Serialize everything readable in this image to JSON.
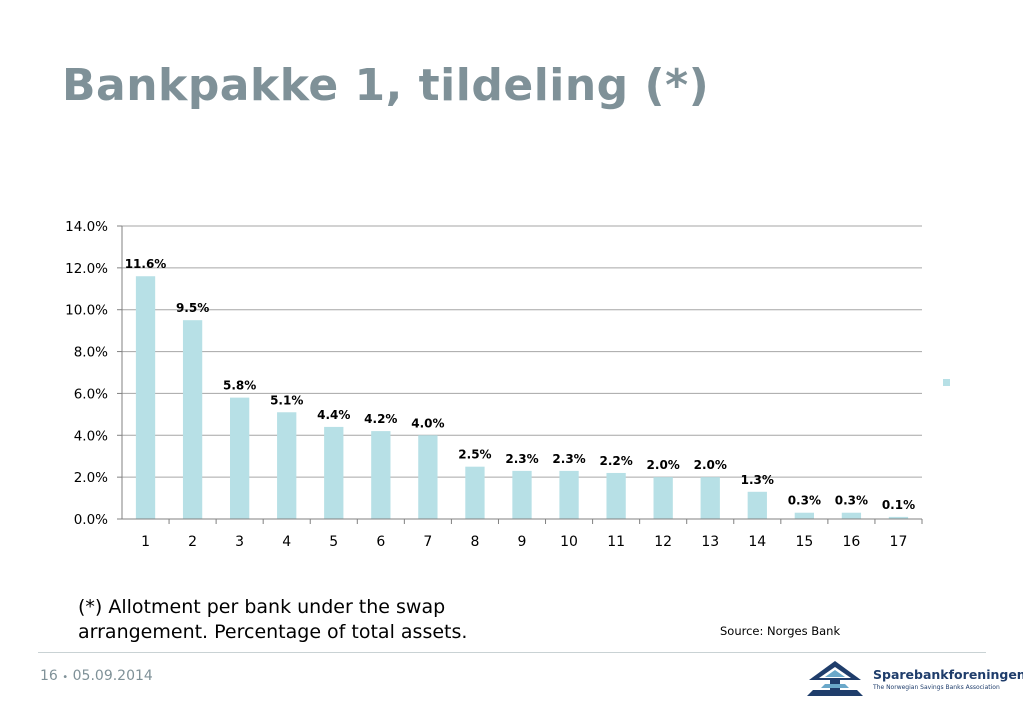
{
  "slide": {
    "title": "Bankpakke 1, tildeling (*)",
    "footnote": "(*) Allotment per bank under the swap arrangement. Percentage of total assets.",
    "source": "Source: Norges Bank",
    "footer": {
      "page_number": "16",
      "separator": "•",
      "date": "05.09.2014"
    },
    "logo": {
      "name": "Sparebankforeningen",
      "subtitle": "The Norwegian Savings Banks Association"
    }
  },
  "colors": {
    "title": "#7f9198",
    "bar": "#b7e0e6",
    "grid": "#a6a6a6",
    "logo": "#1f3d6b"
  },
  "chart_data": {
    "type": "bar",
    "categories": [
      "1",
      "2",
      "3",
      "4",
      "5",
      "6",
      "7",
      "8",
      "9",
      "10",
      "11",
      "12",
      "13",
      "14",
      "15",
      "16",
      "17"
    ],
    "series": [
      {
        "values": [
          11.6,
          9.5,
          5.8,
          5.1,
          4.4,
          4.2,
          4.0,
          2.5,
          2.3,
          2.3,
          2.2,
          2.0,
          2.0,
          1.3,
          0.3,
          0.3,
          0.1
        ]
      }
    ],
    "data_labels": [
      "11.6%",
      "9.5%",
      "5.8%",
      "5.1%",
      "4.4%",
      "4.2%",
      "4.0%",
      "2.5%",
      "2.3%",
      "2.3%",
      "2.2%",
      "2.0%",
      "2.0%",
      "1.3%",
      "0.3%",
      "0.3%",
      "0.1%"
    ],
    "y_ticks": [
      "0.0%",
      "2.0%",
      "4.0%",
      "6.0%",
      "8.0%",
      "10.0%",
      "12.0%",
      "14.0%"
    ],
    "ylim": [
      0,
      14
    ],
    "y_unit": "%",
    "grid": true,
    "legend": "right"
  }
}
